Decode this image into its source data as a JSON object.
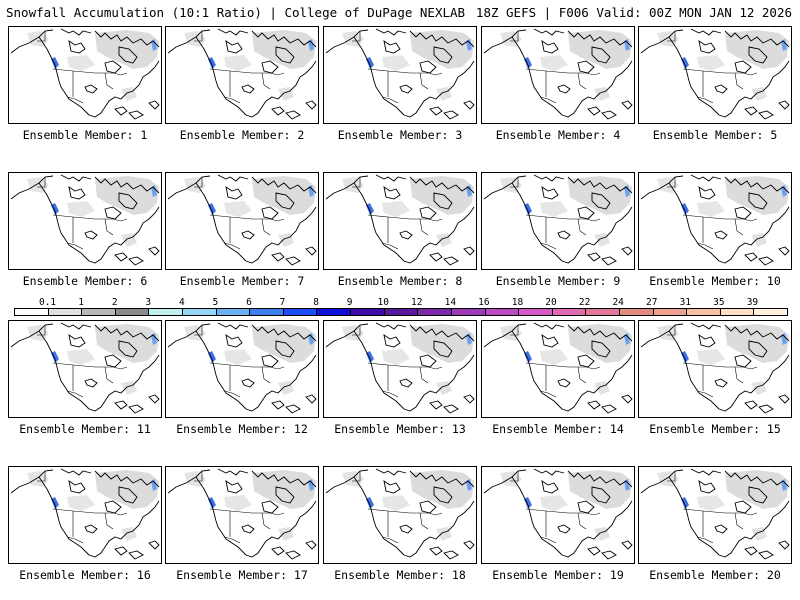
{
  "header": {
    "left_title": "Snowfall Accumulation (10:1 Ratio) | College of DuPage NEXLAB",
    "right_title": "18Z GEFS | F006 Valid: 00Z MON JAN 12 2026"
  },
  "members": [
    {
      "label": "Ensemble Member: 1"
    },
    {
      "label": "Ensemble Member: 2"
    },
    {
      "label": "Ensemble Member: 3"
    },
    {
      "label": "Ensemble Member: 4"
    },
    {
      "label": "Ensemble Member: 5"
    },
    {
      "label": "Ensemble Member: 6"
    },
    {
      "label": "Ensemble Member: 7"
    },
    {
      "label": "Ensemble Member: 8"
    },
    {
      "label": "Ensemble Member: 9"
    },
    {
      "label": "Ensemble Member: 10"
    },
    {
      "label": "Ensemble Member: 11"
    },
    {
      "label": "Ensemble Member: 12"
    },
    {
      "label": "Ensemble Member: 13"
    },
    {
      "label": "Ensemble Member: 14"
    },
    {
      "label": "Ensemble Member: 15"
    },
    {
      "label": "Ensemble Member: 16"
    },
    {
      "label": "Ensemble Member: 17"
    },
    {
      "label": "Ensemble Member: 18"
    },
    {
      "label": "Ensemble Member: 19"
    },
    {
      "label": "Ensemble Member: 20"
    }
  ],
  "colorbar": {
    "labels": [
      "0.1",
      "1",
      "2",
      "3",
      "4",
      "5",
      "6",
      "7",
      "8",
      "9",
      "10",
      "12",
      "14",
      "16",
      "18",
      "20",
      "22",
      "24",
      "27",
      "31",
      "35",
      "39"
    ],
    "colors": [
      "#ffffff",
      "#e0e0e0",
      "#b8b8b8",
      "#8c8c8c",
      "#bfefef",
      "#9ad4f5",
      "#6cb0f0",
      "#3d7ff0",
      "#1e4ef5",
      "#1010d8",
      "#3a0ca8",
      "#5a1a9c",
      "#7a2aa8",
      "#9a3ab8",
      "#b84ac4",
      "#d45ac8",
      "#e06ab0",
      "#e07898",
      "#e08a80",
      "#eca090",
      "#f4c0a8",
      "#fce0c8",
      "#fff0e0"
    ]
  }
}
